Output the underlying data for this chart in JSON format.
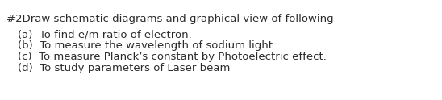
{
  "heading": "#2Draw schematic diagrams and graphical view of following",
  "items": [
    "(a)  To find e/m ratio of electron.",
    "(b)  To measure the wavelength of sodium light.",
    "(c)  To measure Planck’s constant by Photoelectric effect.",
    "(d)  To study parameters of Laser beam"
  ],
  "bg_color": "#ffffff",
  "text_color": "#2b2b2b",
  "heading_fontsize": 9.5,
  "item_fontsize": 9.5,
  "fig_width": 5.48,
  "fig_height": 1.24,
  "dpi": 100
}
